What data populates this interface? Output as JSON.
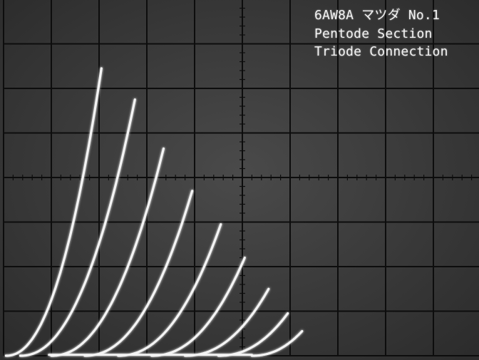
{
  "caption": {
    "line1": "6AW8A マツダ No.1",
    "line2": "Pentode Section",
    "line3": "Triode Connection"
  },
  "colors": {
    "screen": "#4a4a4a",
    "screen_vignette": "#2c2c2c",
    "graticule": "#0d0d0d",
    "trace": "#f4f4f4",
    "label": "#f2f2f2"
  },
  "chart_data": {
    "type": "line",
    "title": "",
    "xlabel": "",
    "ylabel": "",
    "grid": true,
    "xlim": [
      0,
      10
    ],
    "ylim": [
      0,
      8
    ],
    "curve_shape_power": 2.2,
    "series": [
      {
        "start_x": 0.05,
        "end": [
          2.05,
          6.45
        ]
      },
      {
        "start_x": 0.35,
        "end": [
          2.75,
          5.75
        ]
      },
      {
        "start_x": 1.0,
        "end": [
          3.35,
          4.65
        ]
      },
      {
        "start_x": 1.7,
        "end": [
          3.95,
          3.7
        ]
      },
      {
        "start_x": 2.4,
        "end": [
          4.55,
          2.95
        ]
      },
      {
        "start_x": 3.1,
        "end": [
          5.05,
          2.2
        ]
      },
      {
        "start_x": 3.8,
        "end": [
          5.55,
          1.5
        ]
      },
      {
        "start_x": 4.5,
        "end": [
          5.95,
          0.95
        ]
      },
      {
        "start_x": 5.2,
        "end": [
          6.25,
          0.55
        ]
      }
    ]
  }
}
